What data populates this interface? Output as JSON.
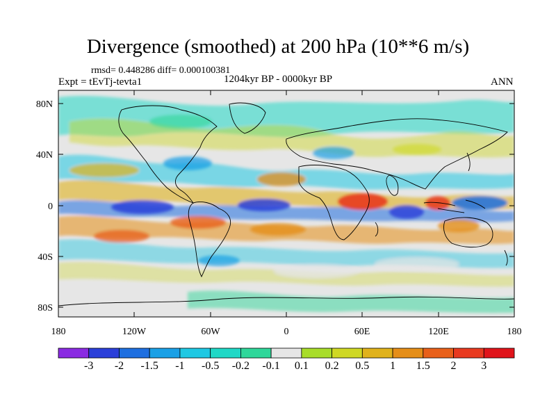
{
  "title": "Divergence (smoothed) at 200 hPa (10**6 m/s)",
  "stats": "rmsd= 0.448286 diff= 0.000100381",
  "experiment": "Expt = tEvTj-tevta1",
  "period": "1204kyr BP - 0000kyr BP",
  "season": "ANN",
  "lat_ticks": [
    "80N",
    "40N",
    "0",
    "40S",
    "80S"
  ],
  "lon_ticks": [
    "180",
    "120W",
    "60W",
    "0",
    "60E",
    "120E",
    "180"
  ],
  "colorbar": {
    "labels": [
      "-3",
      "-2",
      "-1.5",
      "-1",
      "-0.5",
      "-0.2",
      "-0.1",
      "0.1",
      "0.2",
      "0.5",
      "1",
      "1.5",
      "2",
      "3"
    ],
    "colors": [
      "#8a2be2",
      "#2b3fd9",
      "#1e6fe0",
      "#1aa0e6",
      "#1fc8e3",
      "#20d8c6",
      "#2fd79a",
      "#e6e6e6",
      "#a8dd2a",
      "#cfd824",
      "#e0b21c",
      "#e58e18",
      "#e8601a",
      "#e83a20",
      "#e0141b"
    ]
  }
}
